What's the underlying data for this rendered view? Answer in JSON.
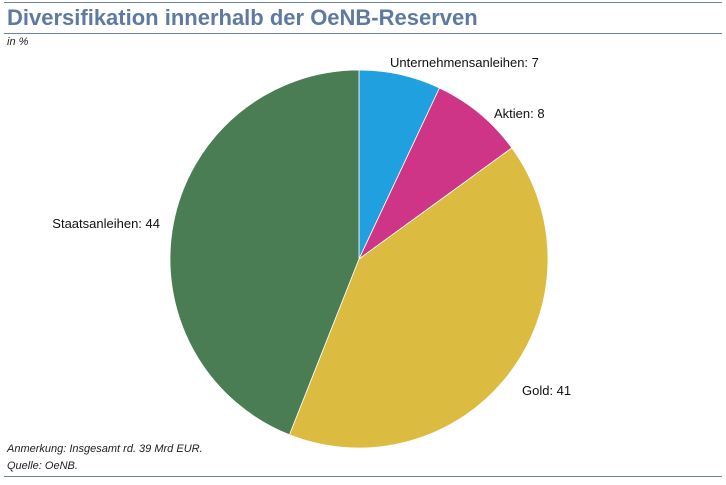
{
  "header": {
    "title": "Diversifikation innerhalb der OeNB-Reserven",
    "subtitle": "in %"
  },
  "footer": {
    "note": "Anmerkung: Insgesamt rd. 39 Mrd EUR.",
    "source": "Quelle: OeNB."
  },
  "chart_data": {
    "type": "pie",
    "title": "Diversifikation innerhalb der OeNB-Reserven",
    "unit": "in %",
    "slices": [
      {
        "label": "Unternehmensanleihen",
        "value": 7,
        "color": "#21a0e0",
        "display": "Unternehmensanleihen: 7"
      },
      {
        "label": "Aktien",
        "value": 8,
        "color": "#cf3586",
        "display": "Aktien: 8"
      },
      {
        "label": "Gold",
        "value": 41,
        "color": "#dcbc40",
        "display": "Gold: 41"
      },
      {
        "label": "Staatsanleihen",
        "value": 44,
        "color": "#4b7d55",
        "display": "Staatsanleihen: 44"
      }
    ]
  }
}
